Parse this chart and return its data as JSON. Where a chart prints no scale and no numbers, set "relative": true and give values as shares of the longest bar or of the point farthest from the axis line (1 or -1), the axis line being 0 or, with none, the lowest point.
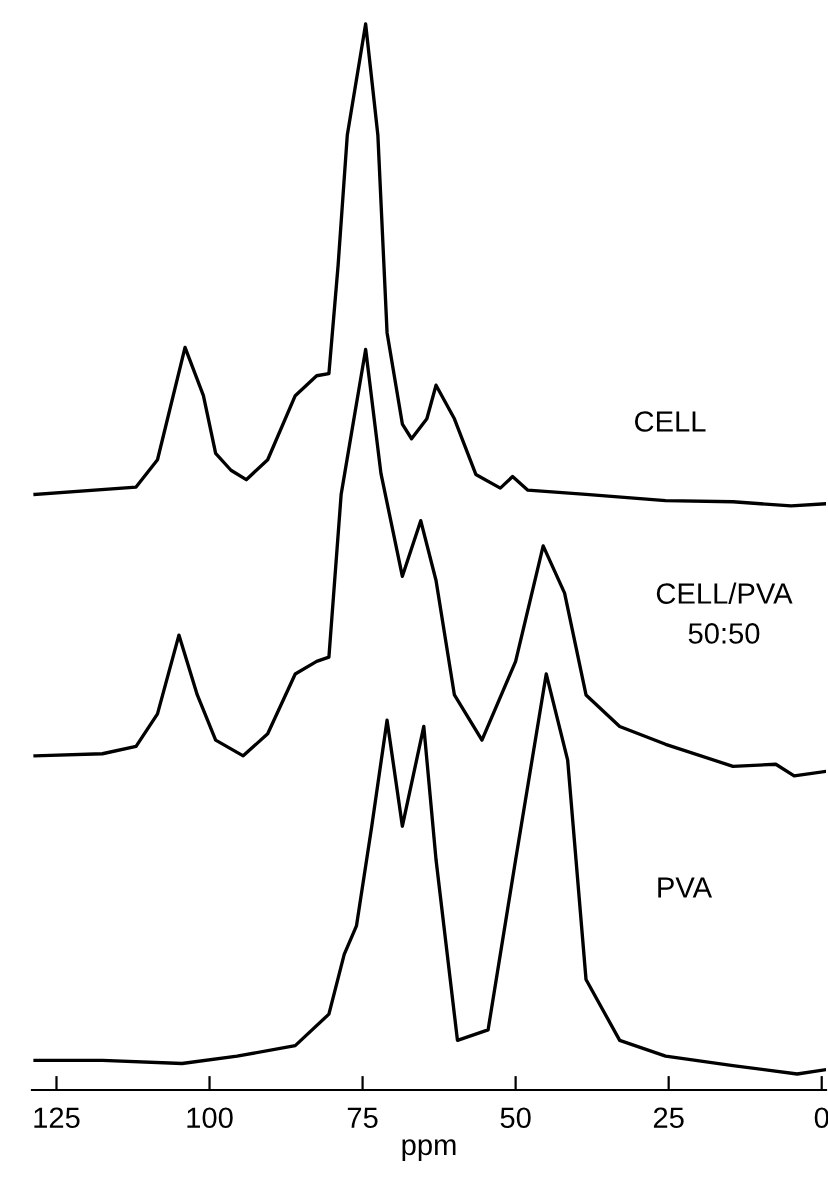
{
  "chart_data": {
    "type": "line",
    "relative": true,
    "xlim": [
      129,
      -0.7
    ],
    "xticks": [
      125,
      100,
      75,
      50,
      25,
      0
    ],
    "xlabel": "ppm",
    "tick_labels": "x",
    "grid": false,
    "legend": false,
    "series": [
      {
        "name": "CELL",
        "color": "#000000",
        "x": [
          128.5,
          112,
          108.5,
          104,
          101,
          99,
          96.5,
          94,
          90.5,
          86,
          82.5,
          80.5,
          79,
          77.5,
          74.5,
          72.5,
          71,
          68.5,
          67,
          64.5,
          63,
          60,
          56.5,
          52.5,
          50.5,
          48,
          38.5,
          25.5,
          14.5,
          5,
          -0.5
        ],
        "values": [
          0.552,
          0.559,
          0.585,
          0.692,
          0.646,
          0.591,
          0.575,
          0.566,
          0.585,
          0.646,
          0.665,
          0.667,
          0.77,
          0.894,
          1.0,
          0.894,
          0.706,
          0.619,
          0.605,
          0.624,
          0.656,
          0.624,
          0.571,
          0.558,
          0.569,
          0.556,
          0.552,
          0.546,
          0.545,
          0.541,
          0.543
        ]
      },
      {
        "name": "CELL/PVA\n50:50",
        "color": "#000000",
        "x": [
          128.5,
          117.5,
          112,
          108.5,
          105,
          102,
          99,
          94.5,
          90.5,
          86,
          82.5,
          80.5,
          78.5,
          74.5,
          72,
          68.5,
          65.5,
          63,
          60,
          55.5,
          50,
          45.5,
          42,
          38.5,
          33,
          25.5,
          14.5,
          7.5,
          4.5,
          -0.5
        ],
        "values": [
          0.303,
          0.305,
          0.312,
          0.343,
          0.418,
          0.361,
          0.318,
          0.303,
          0.324,
          0.381,
          0.393,
          0.397,
          0.552,
          0.69,
          0.572,
          0.474,
          0.527,
          0.47,
          0.361,
          0.318,
          0.393,
          0.503,
          0.458,
          0.361,
          0.331,
          0.314,
          0.293,
          0.295,
          0.284,
          0.288
        ]
      },
      {
        "name": "PVA",
        "color": "#000000",
        "x": [
          128.5,
          117.5,
          104.5,
          95.5,
          86,
          80.5,
          78,
          76,
          73.5,
          71,
          68.5,
          65,
          63,
          59.5,
          54.5,
          50,
          45,
          41.5,
          38.5,
          33,
          25.5,
          14.5,
          4,
          -0.5
        ],
        "values": [
          0.013,
          0.013,
          0.01,
          0.017,
          0.027,
          0.057,
          0.114,
          0.141,
          0.236,
          0.337,
          0.236,
          0.331,
          0.204,
          0.032,
          0.042,
          0.204,
          0.381,
          0.299,
          0.09,
          0.032,
          0.017,
          0.008,
          0,
          0.004
        ]
      }
    ]
  }
}
